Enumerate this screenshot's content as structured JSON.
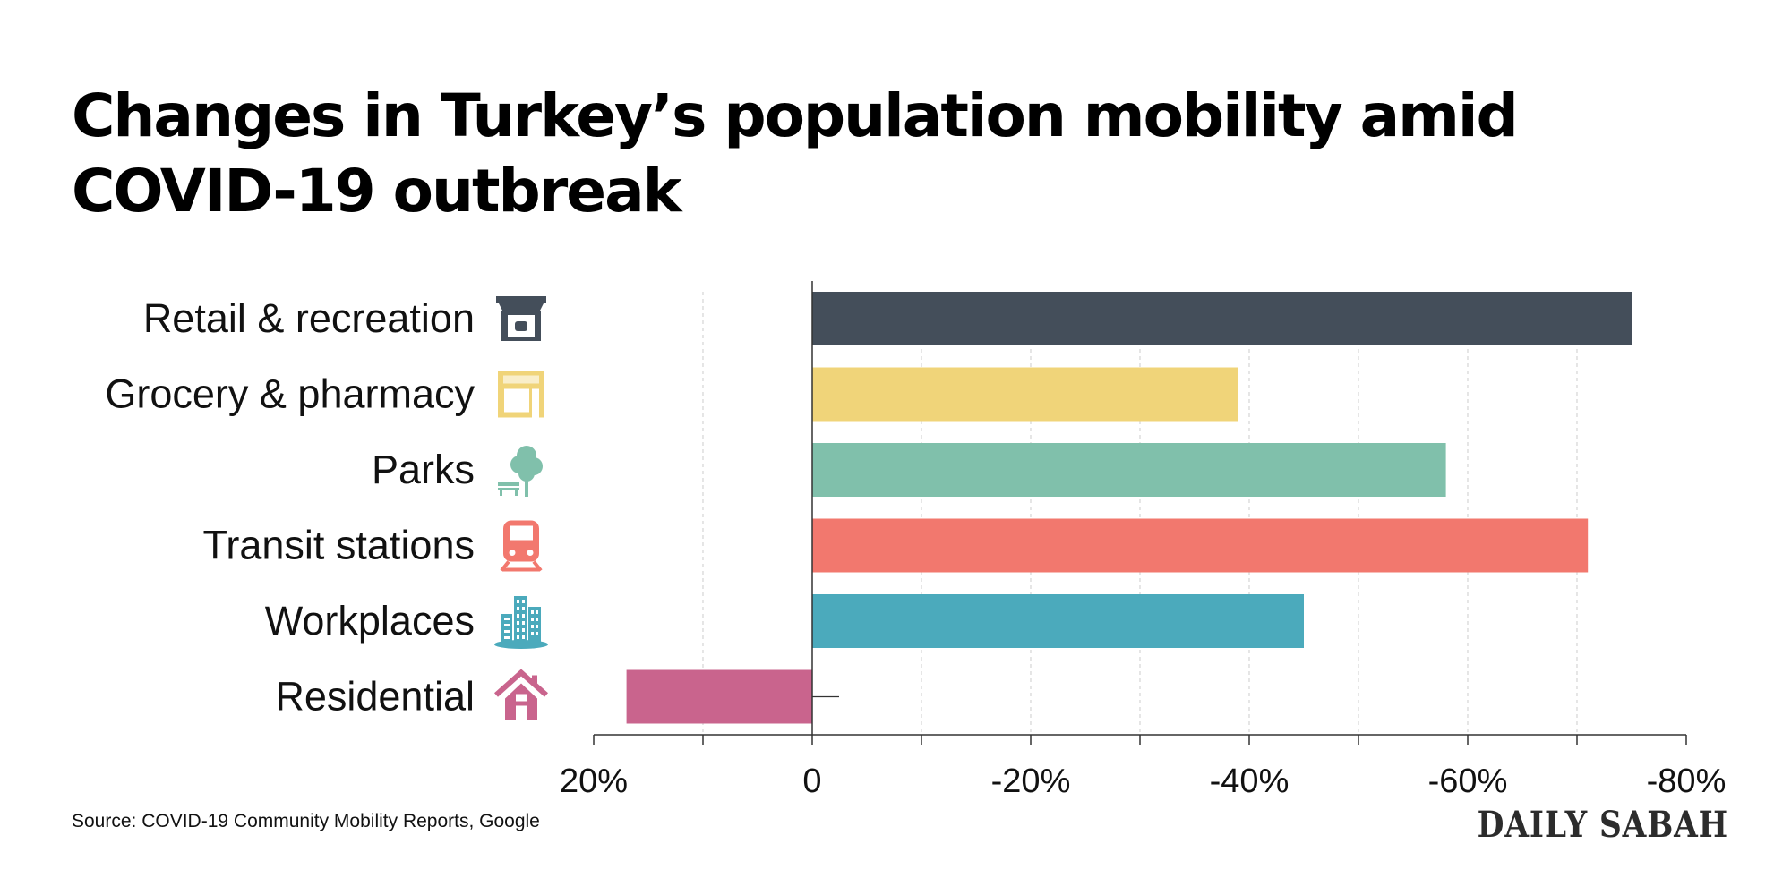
{
  "title": "Changes in Turkey’s population mobility amid COVID-19 outbreak",
  "source": "Source: COVID-19 Community Mobility Reports, Google",
  "logo": "DAILY SABAH",
  "chart_data": {
    "type": "bar",
    "orientation": "horizontal",
    "x_reversed": true,
    "categories": [
      "Retail & recreation",
      "Grocery & pharmacy",
      "Parks",
      "Transit stations",
      "Workplaces",
      "Residential"
    ],
    "values": [
      -75,
      -39,
      -58,
      -71,
      -45,
      17
    ],
    "colors": [
      "#444e5a",
      "#f0d479",
      "#80c0ab",
      "#f2786e",
      "#4baabc",
      "#c9648d"
    ],
    "icons": [
      "storefront-icon",
      "shop-icon",
      "tree-bench-icon",
      "train-icon",
      "buildings-icon",
      "house-icon"
    ],
    "xlim": [
      20,
      -80
    ],
    "ticks": [
      20,
      0,
      -20,
      -40,
      -60,
      -80
    ],
    "tick_labels": [
      "20%",
      "0",
      "-20%",
      "-40%",
      "-60%",
      "-80%"
    ],
    "grid": true,
    "xlabel": "",
    "ylabel": ""
  }
}
